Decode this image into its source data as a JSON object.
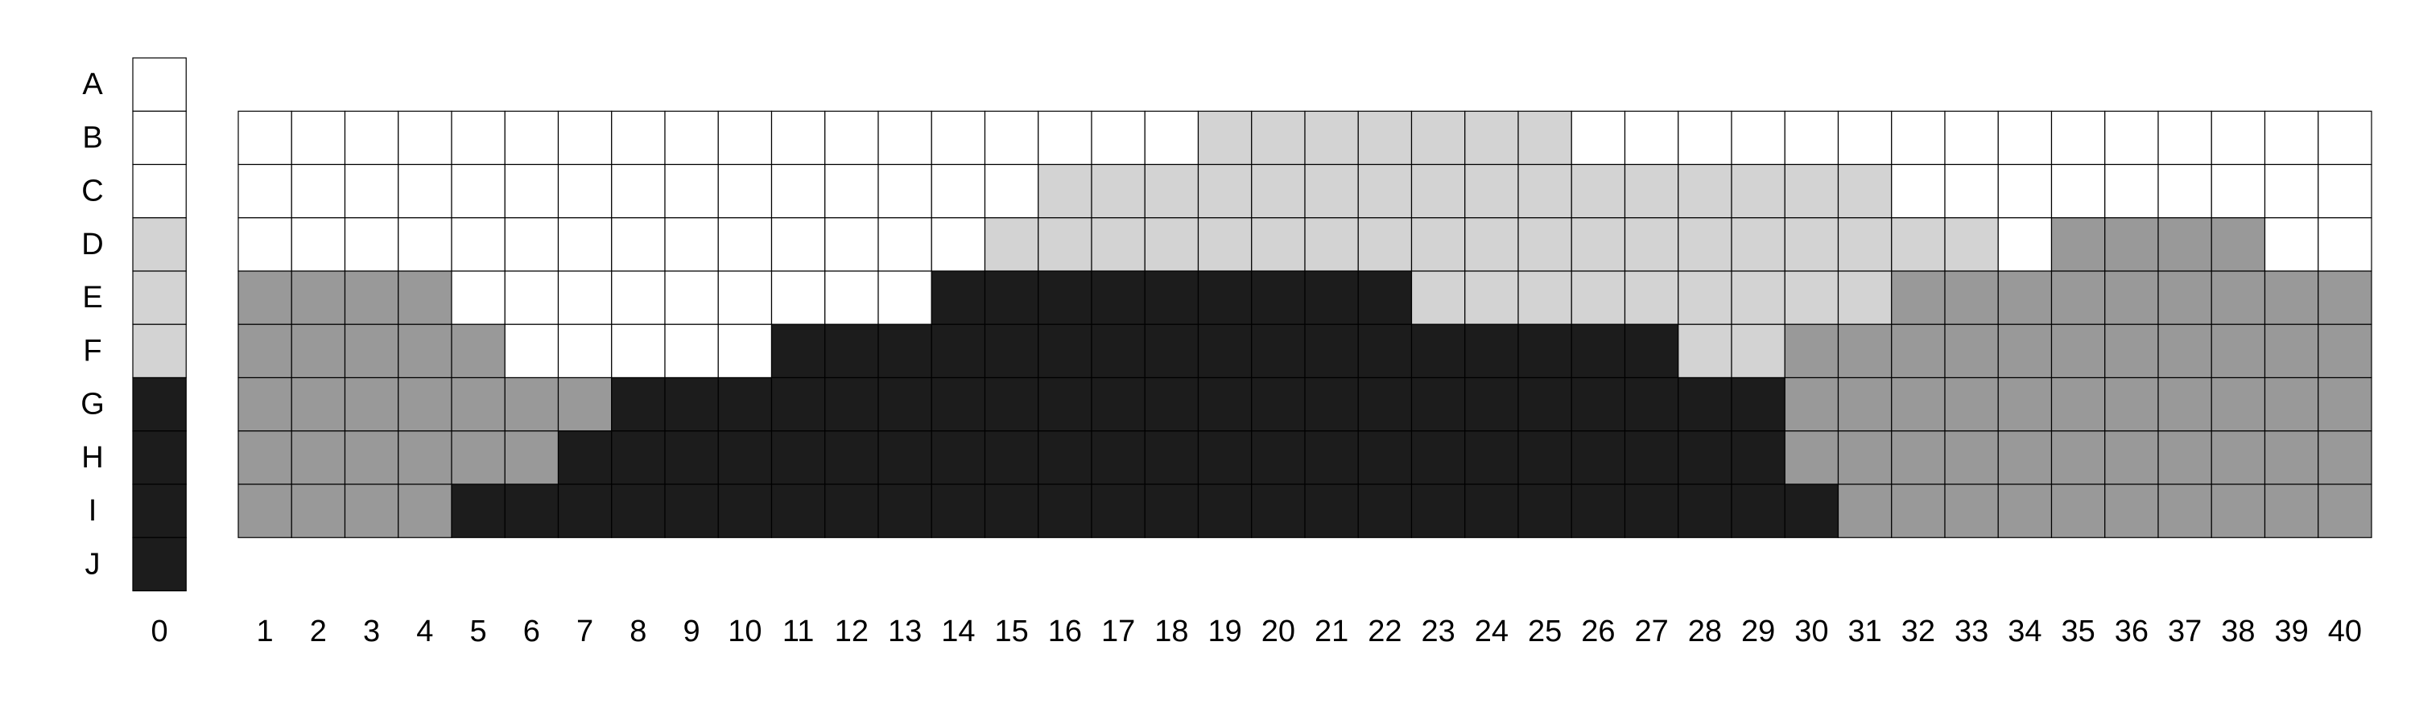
{
  "chart_data": {
    "type": "heatmap",
    "title": "",
    "xlabel": "",
    "ylabel": "",
    "row_labels": [
      "A",
      "B",
      "C",
      "D",
      "E",
      "F",
      "G",
      "H",
      "I",
      "J"
    ],
    "key_column_label": "0",
    "column_labels": [
      "1",
      "2",
      "3",
      "4",
      "5",
      "6",
      "7",
      "8",
      "9",
      "10",
      "11",
      "12",
      "13",
      "14",
      "15",
      "16",
      "17",
      "18",
      "19",
      "20",
      "21",
      "22",
      "23",
      "24",
      "25",
      "26",
      "27",
      "28",
      "29",
      "30",
      "31",
      "32",
      "33",
      "34",
      "35",
      "36",
      "37",
      "38",
      "39",
      "40"
    ],
    "key_column": [
      0,
      0,
      0,
      1,
      1,
      1,
      3,
      3,
      3,
      3
    ],
    "grid_rows": [
      "B",
      "C",
      "D",
      "E",
      "F",
      "G",
      "H",
      "I"
    ],
    "levels": {
      "0": "#ffffff",
      "1": "#d3d3d3",
      "2": "#999999",
      "3": "#1c1c1c"
    },
    "grid": [
      [
        0,
        0,
        0,
        0,
        0,
        0,
        0,
        0,
        0,
        0,
        0,
        0,
        0,
        0,
        0,
        0,
        0,
        0,
        1,
        1,
        1,
        1,
        1,
        1,
        1,
        0,
        0,
        0,
        0,
        0,
        0,
        0,
        0,
        0,
        0,
        0,
        0,
        0,
        0,
        0
      ],
      [
        0,
        0,
        0,
        0,
        0,
        0,
        0,
        0,
        0,
        0,
        0,
        0,
        0,
        0,
        0,
        1,
        1,
        1,
        1,
        1,
        1,
        1,
        1,
        1,
        1,
        1,
        1,
        1,
        1,
        1,
        1,
        0,
        0,
        0,
        0,
        0,
        0,
        0,
        0,
        0
      ],
      [
        0,
        0,
        0,
        0,
        0,
        0,
        0,
        0,
        0,
        0,
        0,
        0,
        0,
        0,
        1,
        1,
        1,
        1,
        1,
        1,
        1,
        1,
        1,
        1,
        1,
        1,
        1,
        1,
        1,
        1,
        1,
        1,
        1,
        0,
        2,
        2,
        2,
        2,
        0,
        0
      ],
      [
        2,
        2,
        2,
        2,
        0,
        0,
        0,
        0,
        0,
        0,
        0,
        0,
        0,
        3,
        3,
        3,
        3,
        3,
        3,
        3,
        3,
        3,
        1,
        1,
        1,
        1,
        1,
        1,
        1,
        1,
        1,
        2,
        2,
        2,
        2,
        2,
        2,
        2,
        2,
        2
      ],
      [
        2,
        2,
        2,
        2,
        2,
        0,
        0,
        0,
        0,
        0,
        3,
        3,
        3,
        3,
        3,
        3,
        3,
        3,
        3,
        3,
        3,
        3,
        3,
        3,
        3,
        3,
        3,
        1,
        1,
        2,
        2,
        2,
        2,
        2,
        2,
        2,
        2,
        2,
        2,
        2
      ],
      [
        2,
        2,
        2,
        2,
        2,
        2,
        2,
        3,
        3,
        3,
        3,
        3,
        3,
        3,
        3,
        3,
        3,
        3,
        3,
        3,
        3,
        3,
        3,
        3,
        3,
        3,
        3,
        3,
        3,
        2,
        2,
        2,
        2,
        2,
        2,
        2,
        2,
        2,
        2,
        2
      ],
      [
        2,
        2,
        2,
        2,
        2,
        2,
        3,
        3,
        3,
        3,
        3,
        3,
        3,
        3,
        3,
        3,
        3,
        3,
        3,
        3,
        3,
        3,
        3,
        3,
        3,
        3,
        3,
        3,
        3,
        2,
        2,
        2,
        2,
        2,
        2,
        2,
        2,
        2,
        2,
        2
      ],
      [
        2,
        2,
        2,
        2,
        3,
        3,
        3,
        3,
        3,
        3,
        3,
        3,
        3,
        3,
        3,
        3,
        3,
        3,
        3,
        3,
        3,
        3,
        3,
        3,
        3,
        3,
        3,
        3,
        3,
        3,
        2,
        2,
        2,
        2,
        2,
        2,
        2,
        2,
        2,
        2
      ]
    ]
  }
}
